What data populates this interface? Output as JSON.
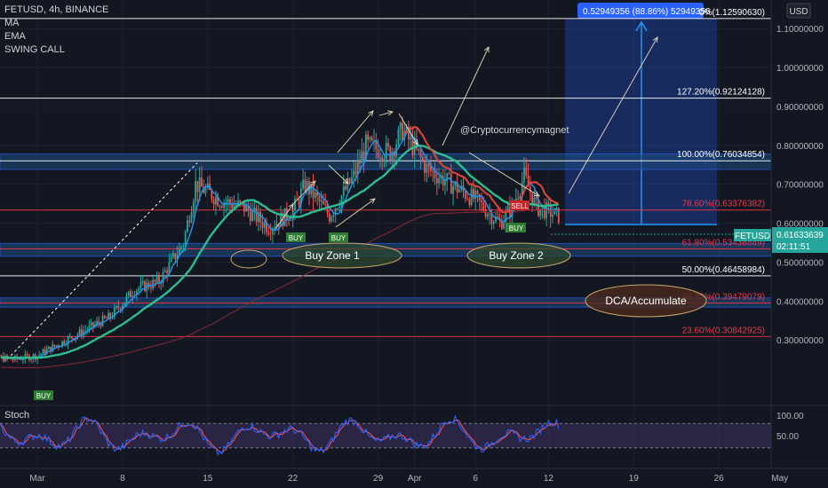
{
  "legend": {
    "symbol": "FETUSD, 4h, BINANCE",
    "ma": "MA",
    "ema": "EMA",
    "swing": "SWING CALL"
  },
  "stoch_label": "Stoch",
  "price_axis": {
    "currency": "USD",
    "ticks": [
      "1.10000000",
      "1.00000000",
      "0.90000000",
      "0.80000000",
      "0.70000000",
      "0.60000000",
      "0.50000000",
      "0.40000000",
      "0.30000000"
    ],
    "tick_values": [
      1.1,
      1.0,
      0.9,
      0.8,
      0.7,
      0.6,
      0.5,
      0.4,
      0.3
    ],
    "last_symbol": "FETUSD",
    "last_price": "0.61633639",
    "countdown": "02:11:51"
  },
  "stoch_axis": {
    "ticks": [
      "100.00",
      "50.00"
    ]
  },
  "time_axis": {
    "ticks": [
      "Mar",
      "8",
      "15",
      "22",
      "29",
      "Apr",
      "6",
      "12",
      "19",
      "26",
      "May"
    ]
  },
  "fib_levels": [
    {
      "label": "0%(1.12590630)",
      "value": 1.1259,
      "color": "#ffffff"
    },
    {
      "label": "127.20%(0.92124128)",
      "value": 0.92124,
      "color": "#ffffff"
    },
    {
      "label": "100.00%(0.76034854)",
      "value": 0.76035,
      "color": "#ffffff"
    },
    {
      "label": "78.60%(0.63376382)",
      "value": 0.63376,
      "color": "#f23645"
    },
    {
      "label": "61.80%(0.53438889)",
      "value": 0.53439,
      "color": "#f23645"
    },
    {
      "label": "50.00%(0.46458984)",
      "value": 0.46459,
      "color": "#ffffff"
    },
    {
      "label": "38.20%(0.39479079)",
      "value": 0.39479,
      "color": "#f23645"
    },
    {
      "label": "23.60%(0.30842925)",
      "value": 0.30843,
      "color": "#f23645"
    }
  ],
  "measure_label": "0.52949356 (88.86%) 52949356",
  "annotations": {
    "handle": "@Cryptocurrencymagnet",
    "buy_zone_1": "Buy Zone 1",
    "buy_zone_2": "Buy Zone 2",
    "dca": "DCA/Accumulate",
    "buy_tag": "BUY",
    "sell_tag": "SELL"
  },
  "colors": {
    "background": "#131722",
    "bull": "#26a69a",
    "bear": "#ef5350",
    "ema": "#2dbd8f",
    "ma_fast": "#2196f3",
    "ma_red": "#e2453c",
    "stoch_k": "#2962ff",
    "stoch_d": "#ef5350",
    "stoch_band": "#7e57c2",
    "zone": "#1e4a7a"
  },
  "chart_data": {
    "type": "candlestick",
    "symbol": "FETUSD",
    "timeframe": "4h",
    "exchange": "BINANCE",
    "y_range": [
      0.22,
      1.17
    ],
    "closes_daily": [
      {
        "date": "2023-02-24",
        "close": 0.26
      },
      {
        "date": "2023-02-27",
        "close": 0.25
      },
      {
        "date": "2023-03-01",
        "close": 0.26
      },
      {
        "date": "2023-03-04",
        "close": 0.31
      },
      {
        "date": "2023-03-07",
        "close": 0.36
      },
      {
        "date": "2023-03-09",
        "close": 0.43
      },
      {
        "date": "2023-03-11",
        "close": 0.45
      },
      {
        "date": "2023-03-13",
        "close": 0.55
      },
      {
        "date": "2023-03-14",
        "close": 0.7
      },
      {
        "date": "2023-03-16",
        "close": 0.66
      },
      {
        "date": "2023-03-18",
        "close": 0.64
      },
      {
        "date": "2023-03-20",
        "close": 0.59
      },
      {
        "date": "2023-03-22",
        "close": 0.63
      },
      {
        "date": "2023-03-23",
        "close": 0.7
      },
      {
        "date": "2023-03-25",
        "close": 0.62
      },
      {
        "date": "2023-03-27",
        "close": 0.72
      },
      {
        "date": "2023-03-28",
        "close": 0.8
      },
      {
        "date": "2023-03-30",
        "close": 0.78
      },
      {
        "date": "2023-03-31",
        "close": 0.84
      },
      {
        "date": "2023-04-02",
        "close": 0.74
      },
      {
        "date": "2023-04-04",
        "close": 0.7
      },
      {
        "date": "2023-04-06",
        "close": 0.66
      },
      {
        "date": "2023-04-08",
        "close": 0.6
      },
      {
        "date": "2023-04-09",
        "close": 0.64
      },
      {
        "date": "2023-04-10",
        "close": 0.72
      },
      {
        "date": "2023-04-11",
        "close": 0.64
      },
      {
        "date": "2023-04-12",
        "close": 0.63
      },
      {
        "date": "2023-04-13",
        "close": 0.616
      }
    ],
    "stoch_range": [
      0,
      100
    ]
  }
}
